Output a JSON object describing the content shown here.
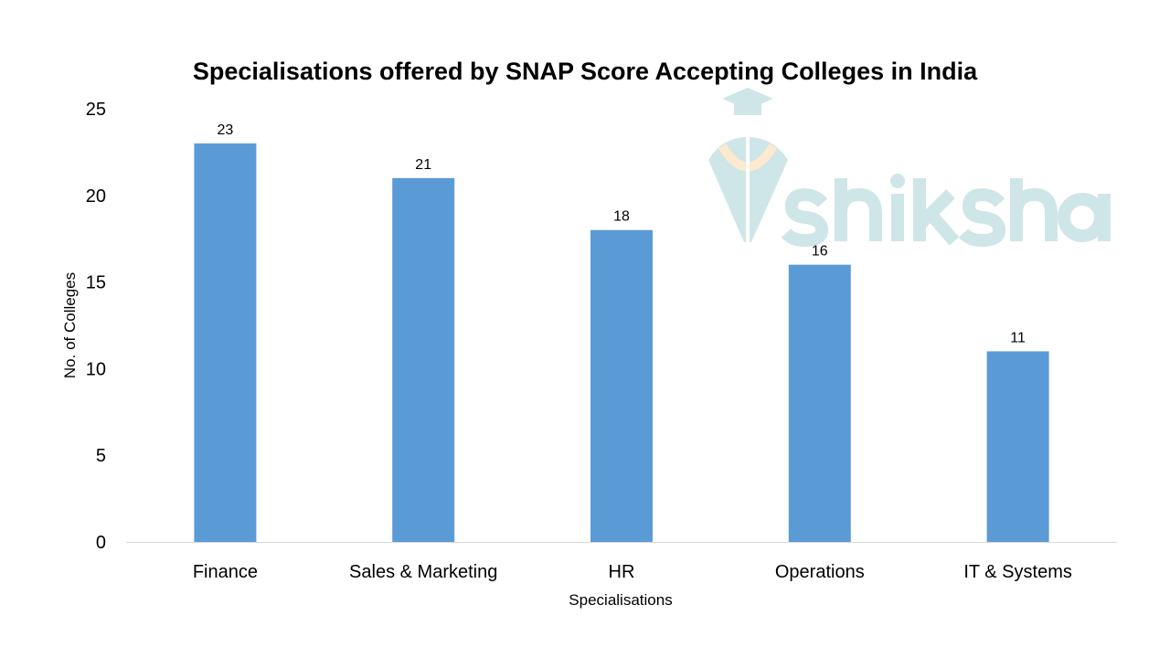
{
  "chart_data": {
    "type": "bar",
    "title": "Specialisations offered by SNAP Score Accepting Colleges in India",
    "xlabel": "Specialisations",
    "ylabel": "No. of Colleges",
    "categories": [
      "Finance",
      "Sales & Marketing",
      "HR",
      "Operations",
      "IT & Systems"
    ],
    "values": [
      23,
      21,
      18,
      16,
      11
    ],
    "data_labels": [
      "23",
      "21",
      "18",
      "16",
      "11"
    ],
    "ylim": [
      0,
      25
    ],
    "yticks": [
      "0",
      "5",
      "10",
      "15",
      "20",
      "25"
    ],
    "grid": false,
    "legend": "none",
    "bar_color": "#5b9bd5"
  },
  "watermark": {
    "text": "shiksha",
    "color": "#cfe6e8",
    "accent": "#fde9cf"
  }
}
